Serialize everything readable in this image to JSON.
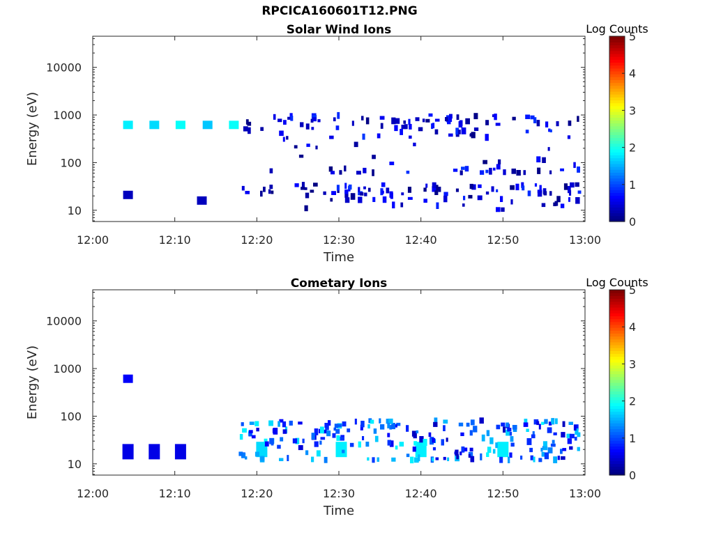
{
  "figure_title": "RPCICA160601T12.PNG",
  "chart_data": [
    {
      "type": "heatmap",
      "title": "Solar Wind Ions",
      "xlabel": "Time",
      "ylabel": "Energy (eV)",
      "y_scale": "log",
      "xlim": [
        "12:00",
        "13:00"
      ],
      "ylim": [
        5.8,
        45000
      ],
      "x_ticks": [
        "12:00",
        "12:10",
        "12:20",
        "12:30",
        "12:40",
        "12:50",
        "13:00"
      ],
      "y_ticks": [
        "10",
        "100",
        "1000",
        "10000"
      ],
      "grid": false,
      "colorbar": {
        "label": "Log Counts",
        "min": 0,
        "max": 5,
        "ticks": [
          "0",
          "1",
          "2",
          "3",
          "4",
          "5"
        ],
        "colormap": "jet"
      },
      "features": [
        {
          "time_min": 4.3,
          "energy_ev": 620,
          "log_counts": 1.8
        },
        {
          "time_min": 7.5,
          "energy_ev": 620,
          "log_counts": 1.7
        },
        {
          "time_min": 10.7,
          "energy_ev": 620,
          "log_counts": 1.9
        },
        {
          "time_min": 14.0,
          "energy_ev": 620,
          "log_counts": 1.6
        },
        {
          "time_min": 17.2,
          "energy_ev": 620,
          "log_counts": 1.9
        },
        {
          "time_min": 4.3,
          "energy_ev": 21,
          "log_counts": 0.3
        },
        {
          "time_min": 13.3,
          "energy_ev": 16,
          "log_counts": 0.3
        }
      ]
    },
    {
      "type": "heatmap",
      "title": "Cometary Ions",
      "xlabel": "Time",
      "ylabel": "Energy (eV)",
      "y_scale": "log",
      "xlim": [
        "12:00",
        "13:00"
      ],
      "ylim": [
        5.8,
        45000
      ],
      "x_ticks": [
        "12:00",
        "12:10",
        "12:20",
        "12:30",
        "12:40",
        "12:50",
        "13:00"
      ],
      "y_ticks": [
        "10",
        "100",
        "1000",
        "10000"
      ],
      "grid": false,
      "colorbar": {
        "label": "Log Counts",
        "min": 0,
        "max": 5,
        "ticks": [
          "0",
          "1",
          "2",
          "3",
          "4",
          "5"
        ],
        "colormap": "jet"
      },
      "features": [
        {
          "time_min": 4.3,
          "energy_ev": 18,
          "log_counts": 0.5
        },
        {
          "time_min": 7.5,
          "energy_ev": 18,
          "log_counts": 0.5
        },
        {
          "time_min": 10.7,
          "energy_ev": 18,
          "log_counts": 0.5
        },
        {
          "time_min": 20.6,
          "energy_ev": 20,
          "log_counts": 1.7
        },
        {
          "time_min": 30.3,
          "energy_ev": 20,
          "log_counts": 1.8
        },
        {
          "time_min": 40.0,
          "energy_ev": 20,
          "log_counts": 1.8
        },
        {
          "time_min": 50.0,
          "energy_ev": 20,
          "log_counts": 1.8
        },
        {
          "time_min": 4.3,
          "energy_ev": 610,
          "log_counts": 0.6
        }
      ]
    }
  ]
}
